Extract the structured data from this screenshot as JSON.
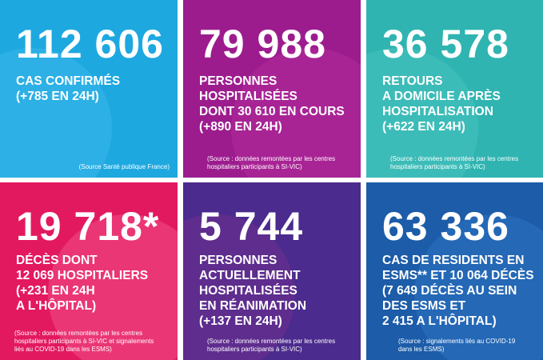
{
  "tiles": [
    {
      "number": "112 606",
      "label": [
        "CAS CONFIRMÉS",
        "(+785 EN 24H)"
      ],
      "source": [
        "(Source Santé publique France)"
      ]
    },
    {
      "number": "79 988",
      "label": [
        "PERSONNES",
        "HOSPITALISÉES",
        "DONT 30 610 EN COURS",
        "(+890 EN 24H)"
      ],
      "source": [
        "(Source : données remontées par les centres",
        "hospitaliers participants à SI-VIC)"
      ]
    },
    {
      "number": "36 578",
      "label": [
        "RETOURS",
        "A DOMICILE APRÈS",
        "HOSPITALISATION",
        "(+622 EN 24H)"
      ],
      "source": [
        "(Source : données remontées par les centres",
        "hospitaliers participants à SI-VIC)"
      ]
    },
    {
      "number": "19 718*",
      "label": [
        "DÉCÈS DONT",
        "12 069 HOSPITALIERS",
        "(+231 EN 24H",
        "A L'HÔPITAL)"
      ],
      "source": [
        "(Source : données remontées par les centres",
        "hospitaliers participants à SI-VIC et signalements",
        "liés au COVID-19 dans les ESMS)"
      ]
    },
    {
      "number": "5 744",
      "label": [
        "PERSONNES",
        "ACTUELLEMENT",
        "HOSPITALISÉES",
        "EN RÉANIMATION",
        "(+137 EN 24H)"
      ],
      "source": [
        "(Source : données remontées par les centres",
        "hospitaliers participants à SI-VIC)"
      ]
    },
    {
      "number": "63 336",
      "label": [
        "CAS DE RESIDENTS EN",
        "ESMS** ET 10 064 DÉCÈS",
        "(7 649 DÉCÈS AU SEIN",
        "DES ESMS ET",
        "2 415 A L'HÔPITAL)"
      ],
      "source": [
        "(Source : signalements liés au COVID-19",
        "dans les ESMS)"
      ]
    }
  ]
}
